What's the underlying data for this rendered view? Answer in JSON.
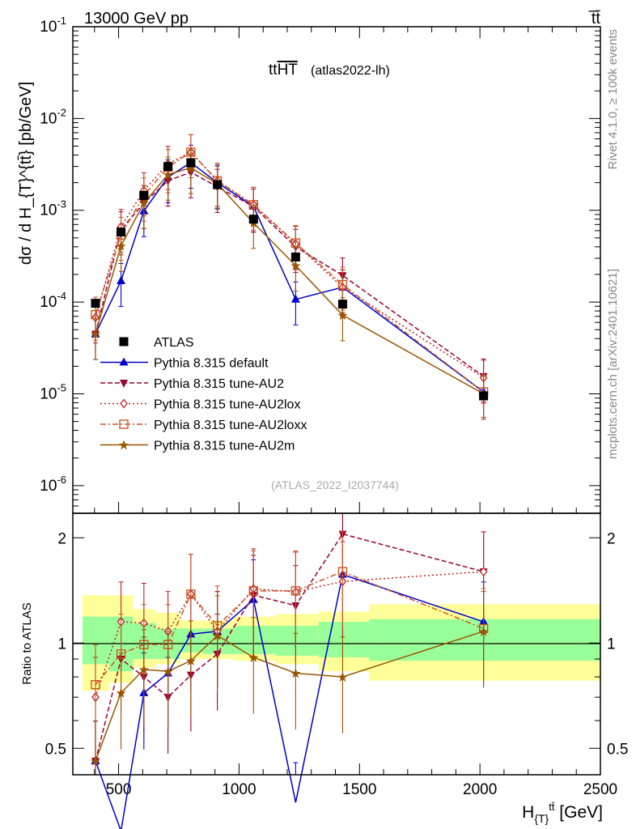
{
  "header": {
    "left": "13000 GeV pp",
    "right": "t̅t̄"
  },
  "side_labels": {
    "top": "Rivet 4.1.0, ≥ 100k events",
    "bottom": "mcplots.cern.ch [arXiv:2401.10621]"
  },
  "colors": {
    "data": "#000000",
    "default": "#0000cc",
    "au2": "#990033",
    "au2lox": "#bb2222",
    "au2loxx": "#cc5522",
    "au2m": "#995500",
    "band_inner": "#99ff99",
    "band_outer": "#ffff99"
  },
  "chart_data": [
    {
      "type": "scatter",
      "panel": "main",
      "title": "ttHT",
      "title_note": "(atlas2022-lh)",
      "ylabel": "dσ / d H_{T}^{tt̄} [pb/GeV]",
      "yscale": "log",
      "ylim": [
        5e-07,
        0.1
      ],
      "xlim": [
        310,
        2500
      ],
      "analysis_id": "(ATLAS_2022_I2037744)",
      "y_ticks": [
        "10^-6",
        "10^-5",
        "10^-4",
        "10^-3",
        "10^-2",
        "10^-1"
      ],
      "x": [
        404,
        510,
        605,
        705,
        800,
        910,
        1060,
        1235,
        1430,
        2015
      ],
      "data": {
        "name": "ATLAS",
        "values": [
          9.7e-05,
          0.00058,
          0.00145,
          0.003,
          0.0033,
          0.0019,
          0.0008,
          0.00031,
          9.5e-05,
          9.5e-06
        ]
      },
      "series": [
        {
          "key": "default",
          "name": "Pythia 8.315 default",
          "style": "solid",
          "marker": "triangle-up",
          "values": [
            4.5e-05,
            0.00017,
            0.00098,
            0.0023,
            0.0033,
            0.002,
            0.0011,
            0.000107,
            0.000145,
            1.05e-05
          ]
        },
        {
          "key": "au2",
          "name": "Pythia 8.315 tune-AU2",
          "style": "dashed",
          "marker": "triangle-down",
          "values": [
            4.5e-05,
            0.00062,
            0.0012,
            0.0021,
            0.0026,
            0.0018,
            0.0011,
            0.0004,
            0.000195,
            1.55e-05
          ]
        },
        {
          "key": "au2lox",
          "name": "Pythia 8.315 tune-AU2lox",
          "style": "dotted",
          "marker": "diamond",
          "values": [
            6.8e-05,
            0.00066,
            0.00165,
            0.0032,
            0.0043,
            0.0021,
            0.00115,
            0.00043,
            0.000145,
            1.5e-05
          ]
        },
        {
          "key": "au2loxx",
          "name": "Pythia 8.315 tune-AU2loxx",
          "style": "dashdot",
          "marker": "square-open",
          "values": [
            7.3e-05,
            0.00054,
            0.00145,
            0.00295,
            0.0043,
            0.0021,
            0.00115,
            0.00044,
            0.000155,
            1.05e-05
          ]
        },
        {
          "key": "au2m",
          "name": "Pythia 8.315 tune-AU2m",
          "style": "solid",
          "marker": "star",
          "values": [
            4.5e-05,
            0.00041,
            0.0012,
            0.00245,
            0.0029,
            0.00195,
            0.00073,
            0.00025,
            7.2e-05,
            1e-05
          ]
        }
      ]
    },
    {
      "type": "line",
      "panel": "ratio",
      "ylabel": "Ratio to ATLAS",
      "yscale": "log",
      "ylim": [
        0.42,
        2.35
      ],
      "xlabel": "H_{T}^{tt̄} [GeV]",
      "y_ticks": [
        "0.5",
        "1",
        "2"
      ],
      "x_ticks": [
        "500",
        "1000",
        "1500",
        "2000",
        "2500"
      ],
      "band_edges": [
        350,
        460,
        560,
        655,
        755,
        850,
        975,
        1150,
        1330,
        1540,
        2500
      ],
      "band_inner": [
        [
          0.87,
          1.19
        ],
        [
          0.83,
          1.19
        ],
        [
          0.9,
          1.14
        ],
        [
          0.9,
          1.1
        ],
        [
          0.94,
          1.1
        ],
        [
          0.93,
          1.1
        ],
        [
          0.93,
          1.12
        ],
        [
          0.92,
          1.12
        ],
        [
          0.91,
          1.15
        ],
        [
          0.89,
          1.17
        ]
      ],
      "band_outer": [
        [
          0.73,
          1.37
        ],
        [
          0.77,
          1.37
        ],
        [
          0.85,
          1.25
        ],
        [
          0.87,
          1.22
        ],
        [
          0.9,
          1.16
        ],
        [
          0.9,
          1.16
        ],
        [
          0.89,
          1.19
        ],
        [
          0.87,
          1.21
        ],
        [
          0.83,
          1.23
        ],
        [
          0.78,
          1.29
        ]
      ],
      "x": [
        404,
        510,
        605,
        705,
        800,
        910,
        1060,
        1235,
        1430,
        2015
      ],
      "series": [
        {
          "key": "default",
          "values": [
            0.46,
            0.29,
            0.72,
            0.82,
            1.06,
            1.08,
            1.33,
            0.35,
            1.57,
            1.15
          ]
        },
        {
          "key": "au2",
          "values": [
            0.46,
            0.9,
            0.8,
            0.7,
            0.81,
            0.93,
            1.37,
            1.28,
            2.05,
            1.6
          ]
        },
        {
          "key": "au2lox",
          "values": [
            0.7,
            1.15,
            1.14,
            1.08,
            1.38,
            1.08,
            1.43,
            1.4,
            1.5,
            1.6
          ]
        },
        {
          "key": "au2loxx",
          "values": [
            0.76,
            0.93,
            0.99,
            0.99,
            1.38,
            1.12,
            1.41,
            1.41,
            1.6,
            1.1
          ]
        },
        {
          "key": "au2m",
          "values": [
            0.46,
            0.72,
            0.84,
            0.83,
            0.89,
            1.05,
            0.91,
            0.82,
            0.8,
            1.08
          ]
        }
      ]
    }
  ]
}
